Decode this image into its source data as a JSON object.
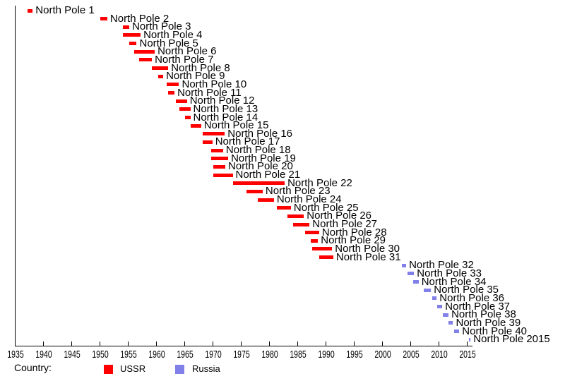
{
  "chart_data": {
    "type": "bar",
    "subtype": "timeline",
    "title": "",
    "xlabel": "",
    "ylabel": "",
    "grid": false,
    "x_axis": {
      "min": 1935,
      "max": 2016.5,
      "tick_step": 5,
      "ticks": [
        1935,
        1940,
        1945,
        1950,
        1955,
        1960,
        1965,
        1970,
        1975,
        1980,
        1985,
        1990,
        1995,
        2000,
        2005,
        2010,
        2015
      ]
    },
    "series": [
      {
        "name": "USSR",
        "color": "#FF0000"
      },
      {
        "name": "Russia",
        "color": "#8080E8"
      }
    ],
    "stations": [
      {
        "label": "North Pole 1",
        "start": 1937.2,
        "end": 1938.1,
        "country": "USSR"
      },
      {
        "label": "North Pole 2",
        "start": 1950.0,
        "end": 1951.3,
        "country": "USSR"
      },
      {
        "label": "North Pole 3",
        "start": 1954.1,
        "end": 1955.2,
        "country": "USSR"
      },
      {
        "label": "North Pole 4",
        "start": 1954.1,
        "end": 1957.2,
        "country": "USSR"
      },
      {
        "label": "North Pole 5",
        "start": 1955.2,
        "end": 1956.5,
        "country": "USSR"
      },
      {
        "label": "North Pole 6",
        "start": 1956.0,
        "end": 1959.7,
        "country": "USSR"
      },
      {
        "label": "North Pole 7",
        "start": 1956.9,
        "end": 1959.2,
        "country": "USSR"
      },
      {
        "label": "North Pole 8",
        "start": 1959.2,
        "end": 1962.1,
        "country": "USSR"
      },
      {
        "label": "North Pole 9",
        "start": 1960.3,
        "end": 1961.2,
        "country": "USSR"
      },
      {
        "label": "North Pole 10",
        "start": 1961.8,
        "end": 1964.0,
        "country": "USSR"
      },
      {
        "label": "North Pole 11",
        "start": 1962.0,
        "end": 1963.2,
        "country": "USSR"
      },
      {
        "label": "North Pole 12",
        "start": 1963.4,
        "end": 1965.4,
        "country": "USSR"
      },
      {
        "label": "North Pole 13",
        "start": 1964.0,
        "end": 1966.0,
        "country": "USSR"
      },
      {
        "label": "North Pole 14",
        "start": 1965.0,
        "end": 1966.0,
        "country": "USSR"
      },
      {
        "label": "North Pole 15",
        "start": 1966.0,
        "end": 1967.9,
        "country": "USSR"
      },
      {
        "label": "North Pole 16",
        "start": 1968.2,
        "end": 1972.1,
        "country": "USSR"
      },
      {
        "label": "North Pole 17",
        "start": 1968.2,
        "end": 1969.9,
        "country": "USSR"
      },
      {
        "label": "North Pole 18",
        "start": 1969.7,
        "end": 1971.8,
        "country": "USSR"
      },
      {
        "label": "North Pole 19",
        "start": 1969.7,
        "end": 1972.7,
        "country": "USSR"
      },
      {
        "label": "North Pole 20",
        "start": 1970.0,
        "end": 1972.2,
        "country": "USSR"
      },
      {
        "label": "North Pole 21",
        "start": 1970.0,
        "end": 1973.5,
        "country": "USSR"
      },
      {
        "label": "North Pole 22",
        "start": 1973.5,
        "end": 1982.7,
        "country": "USSR"
      },
      {
        "label": "North Pole 23",
        "start": 1975.9,
        "end": 1978.8,
        "country": "USSR"
      },
      {
        "label": "North Pole 24",
        "start": 1977.9,
        "end": 1980.8,
        "country": "USSR"
      },
      {
        "label": "North Pole 25",
        "start": 1981.3,
        "end": 1983.8,
        "country": "USSR"
      },
      {
        "label": "North Pole 26",
        "start": 1983.2,
        "end": 1986.1,
        "country": "USSR"
      },
      {
        "label": "North Pole 27",
        "start": 1984.2,
        "end": 1987.1,
        "country": "USSR"
      },
      {
        "label": "North Pole 28",
        "start": 1986.3,
        "end": 1988.8,
        "country": "USSR"
      },
      {
        "label": "North Pole 29",
        "start": 1987.3,
        "end": 1988.6,
        "country": "USSR"
      },
      {
        "label": "North Pole 30",
        "start": 1987.5,
        "end": 1991.1,
        "country": "USSR"
      },
      {
        "label": "North Pole 31",
        "start": 1988.8,
        "end": 1991.3,
        "country": "USSR"
      },
      {
        "label": "North Pole 32",
        "start": 2003.4,
        "end": 2004.2,
        "country": "Russia"
      },
      {
        "label": "North Pole 33",
        "start": 2004.4,
        "end": 2005.6,
        "country": "Russia"
      },
      {
        "label": "North Pole 34",
        "start": 2005.4,
        "end": 2006.4,
        "country": "Russia"
      },
      {
        "label": "North Pole 35",
        "start": 2007.3,
        "end": 2008.6,
        "country": "Russia"
      },
      {
        "label": "North Pole 36",
        "start": 2008.8,
        "end": 2009.6,
        "country": "Russia"
      },
      {
        "label": "North Pole 37",
        "start": 2009.7,
        "end": 2010.6,
        "country": "Russia"
      },
      {
        "label": "North Pole 38",
        "start": 2010.7,
        "end": 2011.7,
        "country": "Russia"
      },
      {
        "label": "North Pole 39",
        "start": 2011.7,
        "end": 2012.5,
        "country": "Russia"
      },
      {
        "label": "North Pole 40",
        "start": 2012.7,
        "end": 2013.6,
        "country": "Russia"
      },
      {
        "label": "North Pole 2015",
        "start": 2015.3,
        "end": 2015.6,
        "country": "Russia"
      }
    ],
    "legend": {
      "position": "bottom",
      "title": "Country:",
      "entries": [
        {
          "label": "USSR",
          "color": "#FF0000"
        },
        {
          "label": "Russia",
          "color": "#8080E8"
        }
      ]
    }
  },
  "colors": {
    "background": "#FFFFFF",
    "axis": "#000000",
    "text": "#000000"
  }
}
